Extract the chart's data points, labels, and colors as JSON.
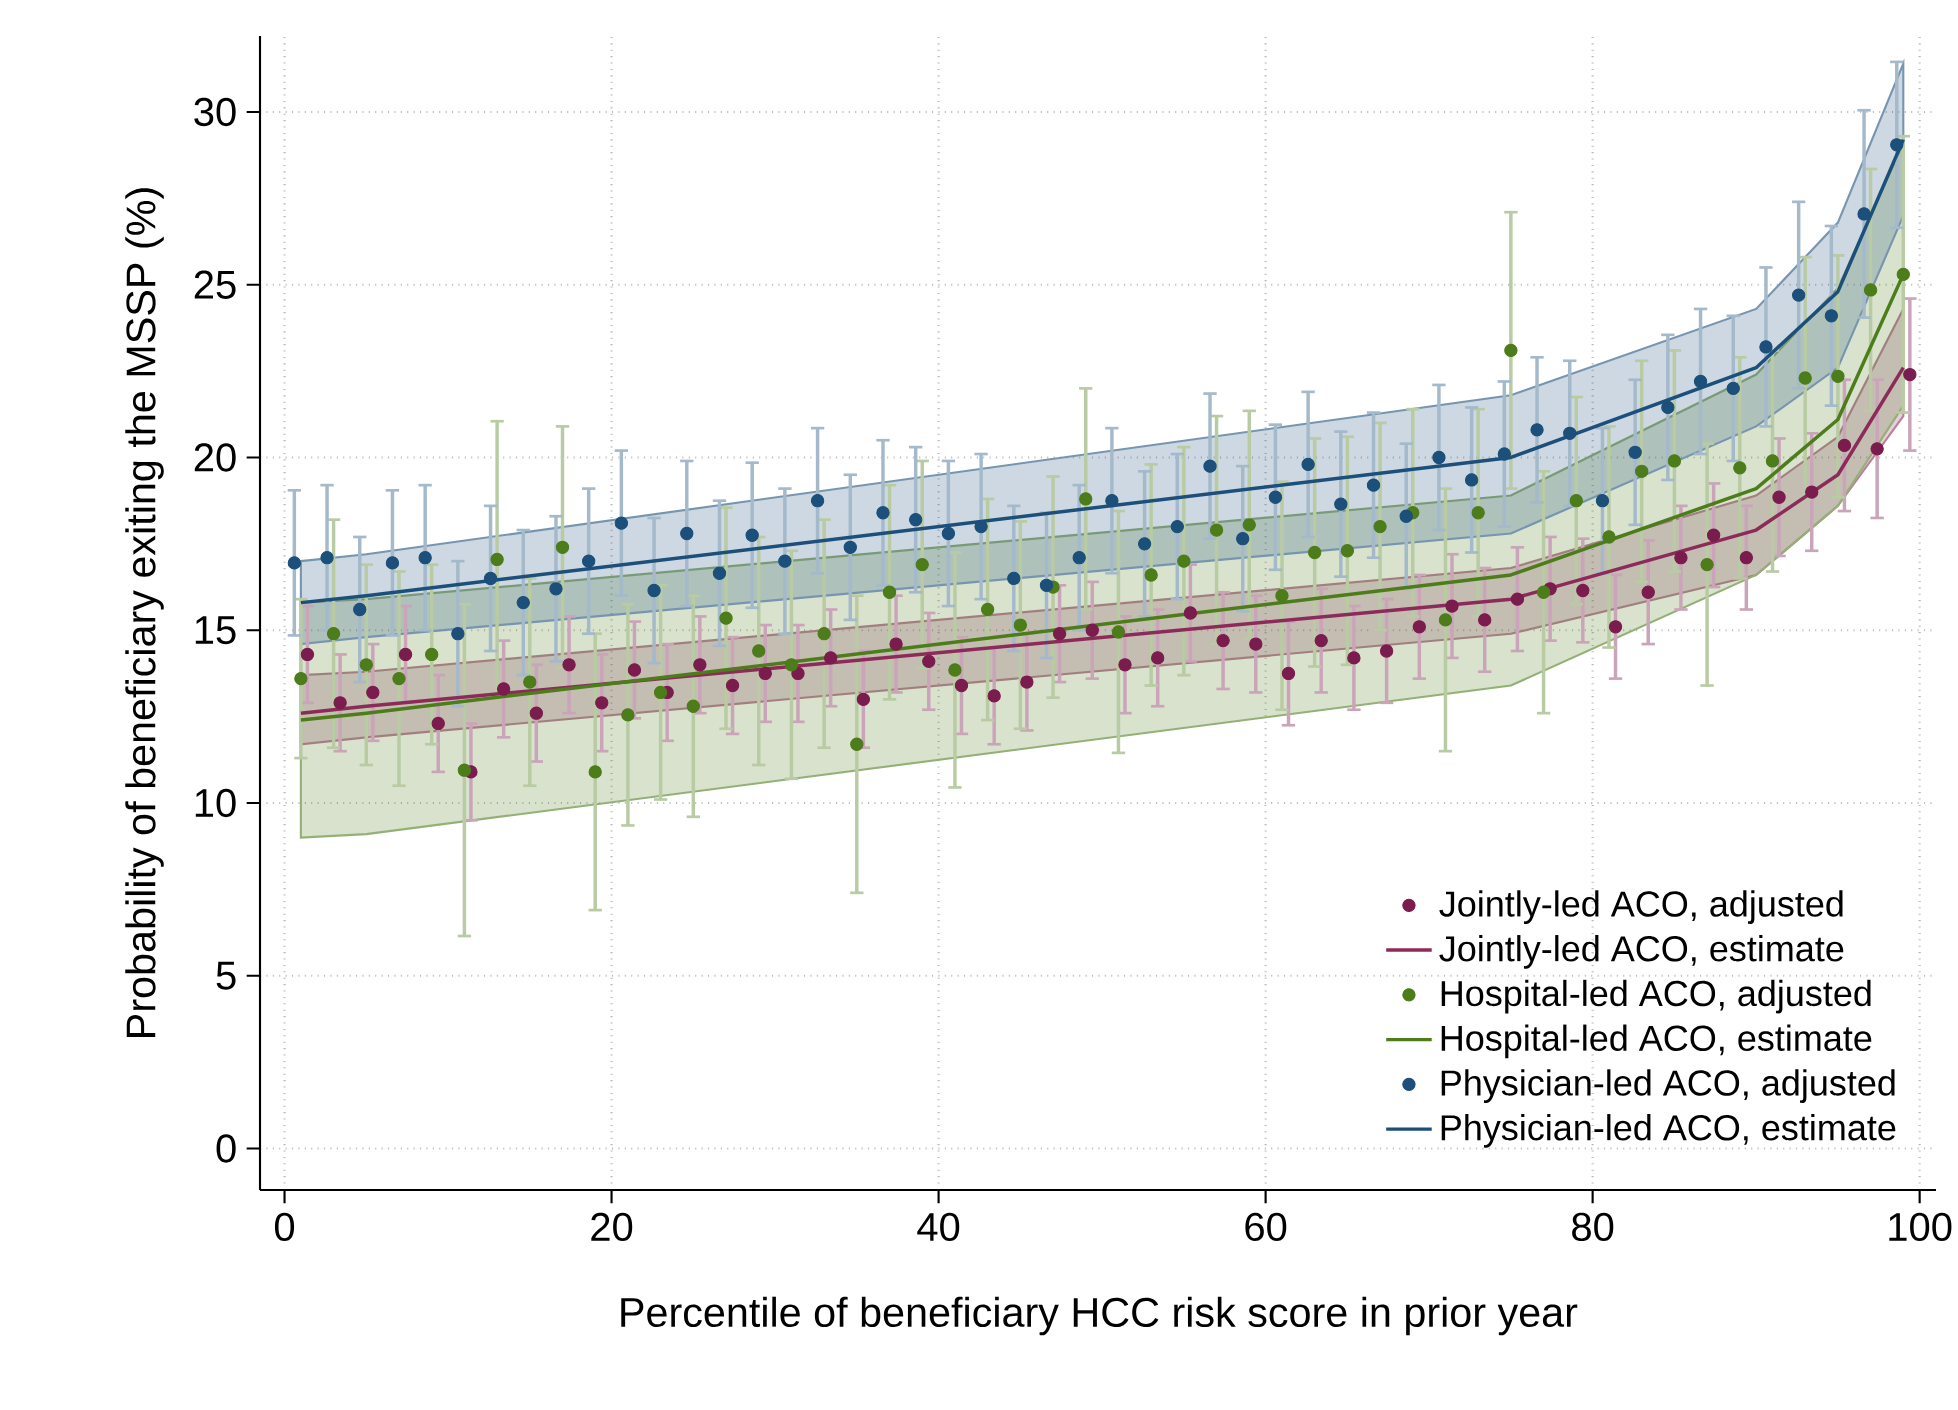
{
  "chart_data": {
    "type": "scatter",
    "xlabel": "Percentile of beneficiary HCC risk score in prior year",
    "ylabel": "Probability of beneficiary exiting the MSSP (%)",
    "xlim": [
      -1.5,
      101
    ],
    "ylim": [
      -1.2,
      32.2
    ],
    "xticks": [
      0,
      20,
      40,
      60,
      80,
      100
    ],
    "yticks": [
      0,
      5,
      10,
      15,
      20,
      25,
      30
    ],
    "grid": true,
    "legend": "bottom right",
    "series": [
      {
        "type": "scatter",
        "name": "Jointly-led ACO, adjusted",
        "color": "#7b1c4e",
        "marker": "circle",
        "x": [
          1.4,
          3.4,
          5.4,
          7.4,
          9.4,
          11.4,
          13.4,
          15.4,
          17.4,
          19.4,
          21.4,
          23.4,
          25.4,
          27.4,
          29.4,
          31.4,
          33.4,
          35.4,
          37.4,
          39.4,
          41.4,
          43.4,
          45.4,
          47.4,
          49.4,
          51.4,
          53.4,
          55.4,
          57.4,
          59.4,
          61.4,
          63.4,
          65.4,
          67.4,
          69.4,
          71.4,
          73.4,
          75.4,
          77.4,
          79.4,
          81.4,
          83.4,
          85.4,
          87.4,
          89.4,
          91.4,
          93.4,
          95.4,
          97.4,
          99.4
        ],
        "values": [
          14.3,
          12.9,
          13.2,
          14.3,
          12.3,
          10.9,
          13.3,
          12.6,
          14.0,
          12.9,
          13.85,
          13.2,
          14.0,
          13.4,
          13.75,
          13.75,
          14.2,
          13.0,
          14.6,
          14.1,
          13.4,
          13.1,
          13.5,
          14.9,
          15.0,
          14.0,
          14.2,
          15.5,
          14.7,
          14.6,
          13.75,
          14.7,
          14.2,
          14.4,
          15.1,
          15.7,
          15.3,
          15.9,
          16.2,
          16.15,
          15.1,
          16.1,
          17.1,
          17.75,
          17.1,
          18.85,
          19.0,
          20.35,
          20.25,
          22.4
        ],
        "errors": [
          1.4,
          1.4,
          1.4,
          1.4,
          1.4,
          1.4,
          1.4,
          1.4,
          1.4,
          1.4,
          1.4,
          1.4,
          1.4,
          1.4,
          1.4,
          1.4,
          1.4,
          1.4,
          1.4,
          1.4,
          1.4,
          1.4,
          1.4,
          1.4,
          1.4,
          1.4,
          1.4,
          1.4,
          1.4,
          1.4,
          1.5,
          1.5,
          1.5,
          1.5,
          1.5,
          1.5,
          1.5,
          1.5,
          1.5,
          1.5,
          1.5,
          1.5,
          1.5,
          1.5,
          1.5,
          1.7,
          1.7,
          1.9,
          2.0,
          2.2
        ]
      },
      {
        "type": "line",
        "name": "Jointly-led ACO, estimate",
        "color": "#8c2b5a",
        "line_style": "solid",
        "marker": "none",
        "x": [
          1,
          5,
          75,
          90,
          95,
          99
        ],
        "values": [
          12.6,
          12.8,
          15.9,
          17.9,
          19.5,
          22.6
        ],
        "lower": [
          11.7,
          11.9,
          14.9,
          16.6,
          18.6,
          21.2
        ],
        "upper": [
          13.7,
          13.8,
          16.8,
          18.9,
          20.6,
          24.3
        ]
      },
      {
        "type": "scatter",
        "name": "Hospital-led ACO, adjusted",
        "color": "#4d7c1a",
        "marker": "circle",
        "x": [
          1,
          3,
          5,
          7,
          9,
          11,
          13,
          15,
          17,
          19,
          21,
          23,
          25,
          27,
          29,
          31,
          33,
          35,
          37,
          39,
          41,
          43,
          45,
          47,
          49,
          51,
          53,
          55,
          57,
          59,
          61,
          63,
          65,
          67,
          69,
          71,
          73,
          75,
          77,
          79,
          81,
          83,
          85,
          87,
          89,
          91,
          93,
          95,
          97,
          99
        ],
        "values": [
          13.6,
          14.9,
          14.0,
          13.6,
          14.3,
          10.95,
          17.05,
          13.5,
          17.4,
          10.9,
          12.55,
          13.2,
          12.8,
          15.35,
          14.4,
          14.0,
          14.9,
          11.7,
          16.1,
          16.9,
          13.85,
          15.6,
          15.15,
          16.25,
          18.8,
          14.95,
          16.6,
          17.0,
          17.9,
          18.05,
          16.0,
          17.25,
          17.3,
          18.0,
          18.4,
          15.3,
          18.4,
          23.1,
          16.1,
          18.75,
          17.7,
          19.6,
          19.9,
          16.9,
          19.7,
          19.9,
          22.3,
          22.35,
          24.85,
          25.3
        ],
        "errors": [
          2.3,
          3.3,
          2.9,
          3.1,
          2.6,
          4.8,
          4.0,
          3.0,
          3.5,
          4.0,
          3.2,
          3.1,
          3.2,
          3.2,
          3.3,
          3.3,
          3.3,
          4.3,
          3.1,
          3.0,
          3.4,
          3.2,
          3.0,
          3.2,
          3.2,
          3.5,
          3.2,
          3.3,
          3.3,
          3.3,
          3.3,
          3.3,
          3.3,
          3.0,
          3.0,
          3.8,
          3.0,
          4.0,
          3.5,
          3.0,
          3.2,
          3.2,
          3.2,
          3.5,
          3.2,
          3.2,
          3.5,
          3.5,
          3.5,
          4.0
        ]
      },
      {
        "type": "line",
        "name": "Hospital-led ACO, estimate",
        "color": "#4d7c1a",
        "line_style": "solid",
        "marker": "none",
        "x": [
          1,
          5,
          75,
          90,
          95,
          99
        ],
        "values": [
          12.4,
          12.6,
          16.6,
          19.1,
          21.1,
          25.3
        ],
        "lower": [
          9.0,
          9.1,
          13.4,
          16.6,
          18.6,
          21.5
        ],
        "upper": [
          15.8,
          15.9,
          18.9,
          22.4,
          24.9,
          29.1
        ]
      },
      {
        "type": "scatter",
        "name": "Physician-led ACO, adjusted",
        "color": "#1c4f7a",
        "marker": "circle",
        "x": [
          0.6,
          2.6,
          4.6,
          6.6,
          8.6,
          10.6,
          12.6,
          14.6,
          16.6,
          18.6,
          20.6,
          22.6,
          24.6,
          26.6,
          28.6,
          30.6,
          32.6,
          34.6,
          36.6,
          38.6,
          40.6,
          42.6,
          44.6,
          46.6,
          48.6,
          50.6,
          52.6,
          54.6,
          56.6,
          58.6,
          60.6,
          62.6,
          64.6,
          66.6,
          68.6,
          70.6,
          72.6,
          74.6,
          76.6,
          78.6,
          80.6,
          82.6,
          84.6,
          86.6,
          88.6,
          90.6,
          92.6,
          94.6,
          96.6,
          98.6
        ],
        "values": [
          16.95,
          17.1,
          15.6,
          16.95,
          17.1,
          14.9,
          16.5,
          15.8,
          16.2,
          17.0,
          18.1,
          16.15,
          17.8,
          16.65,
          17.75,
          17.0,
          18.75,
          17.4,
          18.4,
          18.2,
          17.8,
          18.0,
          16.5,
          16.3,
          17.1,
          18.75,
          17.5,
          18.0,
          19.75,
          17.65,
          18.85,
          19.8,
          18.65,
          19.2,
          18.3,
          20.0,
          19.35,
          20.1,
          20.8,
          20.7,
          18.75,
          20.15,
          21.45,
          22.2,
          22.0,
          23.2,
          24.7,
          24.1,
          27.05,
          29.05
        ],
        "errors": [
          2.1,
          2.1,
          2.1,
          2.1,
          2.1,
          2.1,
          2.1,
          2.1,
          2.1,
          2.1,
          2.1,
          2.1,
          2.1,
          2.1,
          2.1,
          2.1,
          2.1,
          2.1,
          2.1,
          2.1,
          2.1,
          2.1,
          2.1,
          2.1,
          2.1,
          2.1,
          2.1,
          2.1,
          2.1,
          2.1,
          2.1,
          2.1,
          2.1,
          2.1,
          2.1,
          2.1,
          2.1,
          2.1,
          2.1,
          2.1,
          2.1,
          2.1,
          2.1,
          2.1,
          2.1,
          2.3,
          2.7,
          2.6,
          3.0,
          2.4
        ]
      },
      {
        "type": "line",
        "name": "Physician-led ACO, estimate",
        "color": "#1c4f7a",
        "line_style": "solid",
        "marker": "none",
        "x": [
          1,
          5,
          75,
          90,
          95,
          99
        ],
        "values": [
          15.8,
          16.0,
          20.0,
          22.6,
          24.8,
          29.2
        ],
        "lower": [
          14.6,
          14.8,
          17.8,
          20.9,
          22.6,
          27.0
        ],
        "upper": [
          17.0,
          17.2,
          21.8,
          24.3,
          26.8,
          31.4
        ]
      }
    ]
  }
}
